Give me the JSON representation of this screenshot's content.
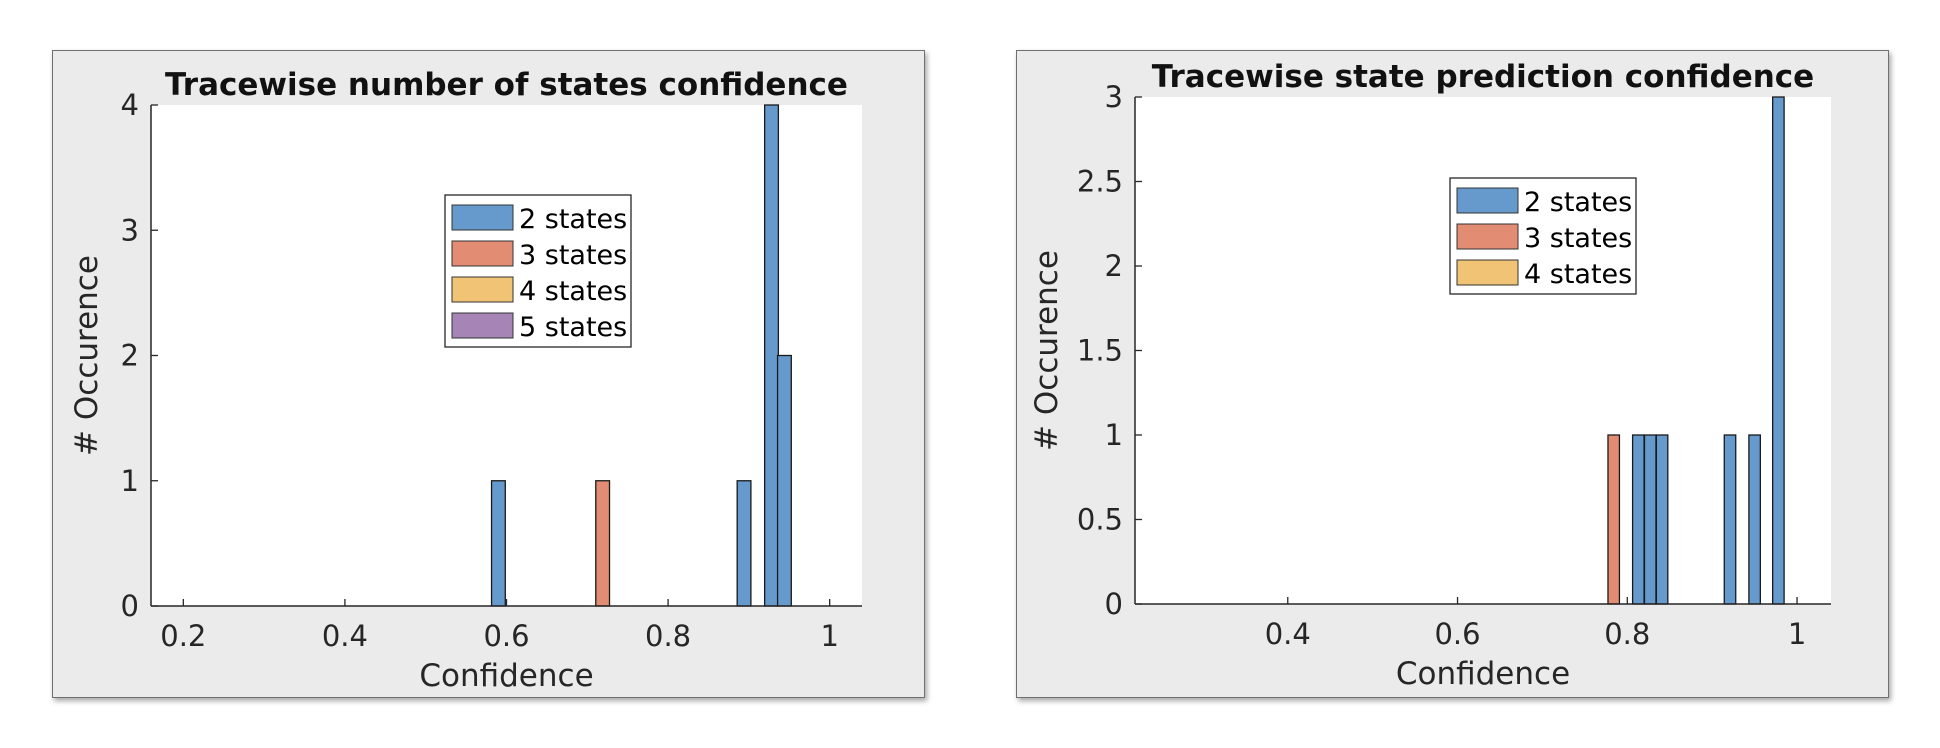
{
  "chart_data": [
    {
      "type": "bar",
      "title": "Tracewise number of states confidence",
      "xlabel": "Confidence",
      "ylabel": "# Occurence",
      "xlim": [
        0.16,
        1.04
      ],
      "ylim": [
        0,
        4
      ],
      "xticks": [
        0.2,
        0.4,
        0.6,
        0.8,
        1
      ],
      "xtick_labels": [
        "0.2",
        "0.4",
        "0.6",
        "0.8",
        "1"
      ],
      "yticks": [
        0,
        1,
        2,
        3,
        4
      ],
      "ytick_labels": [
        "0",
        "1",
        "2",
        "3",
        "4"
      ],
      "bar_width": 0.017,
      "legend_position": "center",
      "legend": [
        {
          "name": "2 states",
          "color": "#6699cc"
        },
        {
          "name": "3 states",
          "color": "#e28c74"
        },
        {
          "name": "4 states",
          "color": "#f0c474"
        },
        {
          "name": "5 states",
          "color": "#a684b6"
        }
      ],
      "series": [
        {
          "name": "2 states",
          "color": "#6699cc",
          "x": [
            0.59,
            0.894,
            0.928,
            0.944
          ],
          "values": [
            1,
            1,
            4,
            2
          ]
        },
        {
          "name": "3 states",
          "color": "#e28c74",
          "x": [
            0.719
          ],
          "values": [
            1
          ]
        },
        {
          "name": "4 states",
          "color": "#f0c474",
          "x": [],
          "values": []
        },
        {
          "name": "5 states",
          "color": "#a684b6",
          "x": [],
          "values": []
        }
      ]
    },
    {
      "type": "bar",
      "title": "Tracewise state prediction confidence",
      "xlabel": "Confidence",
      "ylabel": "# Occurence",
      "xlim": [
        0.22,
        1.04
      ],
      "ylim": [
        0,
        3
      ],
      "xticks": [
        0.4,
        0.6,
        0.8,
        1
      ],
      "xtick_labels": [
        "0.4",
        "0.6",
        "0.8",
        "1"
      ],
      "yticks": [
        0,
        0.5,
        1,
        1.5,
        2,
        2.5,
        3
      ],
      "ytick_labels": [
        "0",
        "0.5",
        "1",
        "1.5",
        "2",
        "2.5",
        "3"
      ],
      "bar_width": 0.0135,
      "legend_position": "center",
      "legend": [
        {
          "name": "2 states",
          "color": "#6699cc"
        },
        {
          "name": "3 states",
          "color": "#e28c74"
        },
        {
          "name": "4 states",
          "color": "#f0c474"
        }
      ],
      "series": [
        {
          "name": "2 states",
          "color": "#6699cc",
          "x": [
            0.813,
            0.827,
            0.841,
            0.921,
            0.95,
            0.978
          ],
          "values": [
            1,
            1,
            1,
            1,
            1,
            3
          ]
        },
        {
          "name": "3 states",
          "color": "#e28c74",
          "x": [
            0.784
          ],
          "values": [
            1
          ]
        },
        {
          "name": "4 states",
          "color": "#f0c474",
          "x": [],
          "values": []
        }
      ]
    }
  ]
}
